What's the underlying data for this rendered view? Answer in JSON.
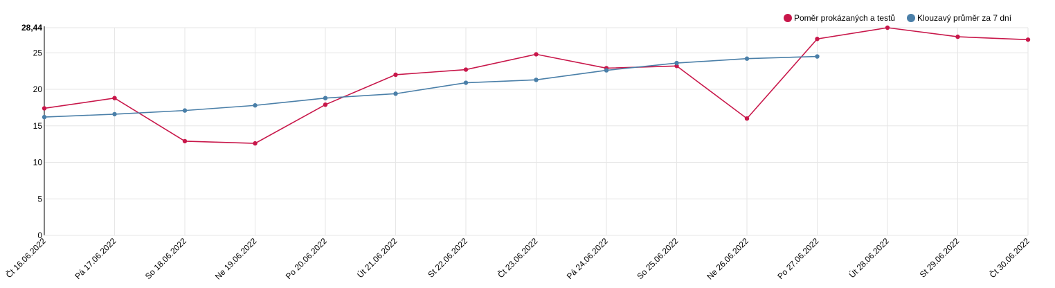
{
  "chart_data": {
    "type": "line",
    "x": [
      "Čt 16.06.2022",
      "Pá 17.06.2022",
      "So 18.06.2022",
      "Ne 19.06.2022",
      "Po 20.06.2022",
      "Út 21.06.2022",
      "St 22.06.2022",
      "Čt 23.06.2022",
      "Pá 24.06.2022",
      "So 25.06.2022",
      "Ne 26.06.2022",
      "Po 27.06.2022",
      "Út 28.06.2022",
      "St 29.06.2022",
      "Čt 30.06.2022"
    ],
    "series": [
      {
        "name": "Poměr prokázaných a testů",
        "color": "#c8174a",
        "values": [
          17.4,
          18.8,
          12.9,
          12.6,
          17.9,
          22.0,
          22.7,
          24.8,
          22.9,
          23.2,
          16.0,
          26.9,
          28.44,
          27.2,
          26.8
        ]
      },
      {
        "name": "Klouzavý průměr za 7 dní",
        "color": "#4a7fa8",
        "values": [
          16.2,
          16.6,
          17.1,
          17.8,
          18.8,
          19.4,
          20.9,
          21.3,
          22.6,
          23.6,
          24.2,
          24.5,
          null,
          null,
          null
        ]
      }
    ],
    "y_ticks": [
      "0",
      "5",
      "10",
      "15",
      "20",
      "25"
    ],
    "y_max_label": "28,44",
    "ylim": [
      0,
      28.44
    ],
    "grid": true,
    "legend_position": "top-right"
  }
}
